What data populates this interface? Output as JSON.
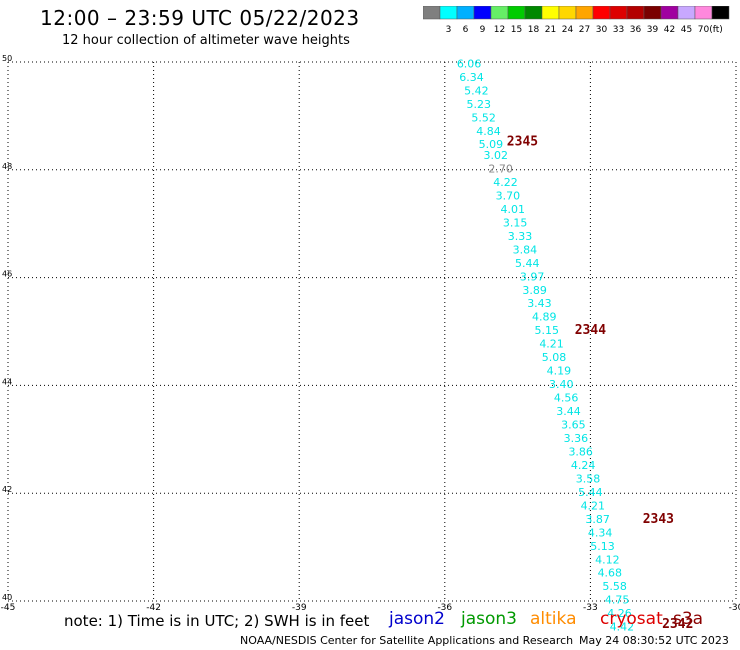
{
  "header": {
    "title": "12:00 – 23:59 UTC 05/22/2023",
    "subtitle": "12 hour collection of altimeter wave heights"
  },
  "colorbar": {
    "unit": "(ft)",
    "labels": [
      "3",
      "6",
      "9",
      "12",
      "15",
      "18",
      "21",
      "24",
      "27",
      "30",
      "33",
      "36",
      "39",
      "42",
      "45",
      "70"
    ],
    "colors": [
      "#7f7f7f",
      "#00ffff",
      "#00b0ff",
      "#0000ff",
      "#66ee66",
      "#00cc00",
      "#008800",
      "#ffff00",
      "#ffd700",
      "#ffa500",
      "#ff0000",
      "#dd0000",
      "#b30000",
      "#7a0000",
      "#a000a0",
      "#c8a8ff",
      "#ff88dd",
      "#000000"
    ]
  },
  "map": {
    "lon_range": [
      -45,
      -30
    ],
    "lat_range": [
      40,
      50
    ],
    "lon_ticks": [
      "-45",
      "-42",
      "-39",
      "-36",
      "-33",
      "-30"
    ],
    "lat_ticks": [
      "50",
      "48",
      "46",
      "44",
      "42",
      "40"
    ],
    "grid": "dotted"
  },
  "chart_data": {
    "type": "scatter",
    "x_unit": "degrees longitude",
    "y_unit": "degrees latitude",
    "xlim": [
      -45,
      -30
    ],
    "ylim": [
      40,
      50
    ],
    "points": [
      {
        "lon": -35.5,
        "lat": 49.9,
        "label": "6.06",
        "color": "#00e5e5"
      },
      {
        "lon": -35.45,
        "lat": 49.65,
        "label": "6.34",
        "color": "#00e5e5"
      },
      {
        "lon": -35.35,
        "lat": 49.4,
        "label": "5.42",
        "color": "#00e5e5"
      },
      {
        "lon": -35.3,
        "lat": 49.15,
        "label": "5.23",
        "color": "#00e5e5"
      },
      {
        "lon": -35.2,
        "lat": 48.9,
        "label": "5.52",
        "color": "#00e5e5"
      },
      {
        "lon": -35.1,
        "lat": 48.65,
        "label": "4.84",
        "color": "#00e5e5"
      },
      {
        "lon": -35.05,
        "lat": 48.4,
        "label": "5.09",
        "color": "#00e5e5"
      },
      {
        "lon": -34.95,
        "lat": 48.2,
        "label": "3.02",
        "color": "#00e5e5"
      },
      {
        "lon": -34.85,
        "lat": 47.95,
        "label": "2.70",
        "color": "#888888"
      },
      {
        "lon": -34.75,
        "lat": 47.7,
        "label": "4.22",
        "color": "#00e5e5"
      },
      {
        "lon": -34.7,
        "lat": 47.45,
        "label": "3.70",
        "color": "#00e5e5"
      },
      {
        "lon": -34.6,
        "lat": 47.2,
        "label": "4.01",
        "color": "#00e5e5"
      },
      {
        "lon": -34.55,
        "lat": 46.95,
        "label": "3.15",
        "color": "#00e5e5"
      },
      {
        "lon": -34.45,
        "lat": 46.7,
        "label": "3.33",
        "color": "#00e5e5"
      },
      {
        "lon": -34.35,
        "lat": 46.45,
        "label": "3.84",
        "color": "#00e5e5"
      },
      {
        "lon": -34.3,
        "lat": 46.2,
        "label": "5.44",
        "color": "#00e5e5"
      },
      {
        "lon": -34.2,
        "lat": 45.95,
        "label": "3.97",
        "color": "#00e5e5"
      },
      {
        "lon": -34.15,
        "lat": 45.7,
        "label": "3.89",
        "color": "#00e5e5"
      },
      {
        "lon": -34.05,
        "lat": 45.45,
        "label": "3.43",
        "color": "#00e5e5"
      },
      {
        "lon": -33.95,
        "lat": 45.2,
        "label": "4.89",
        "color": "#00e5e5"
      },
      {
        "lon": -33.9,
        "lat": 44.95,
        "label": "5.15",
        "color": "#00e5e5"
      },
      {
        "lon": -33.8,
        "lat": 44.7,
        "label": "4.21",
        "color": "#00e5e5"
      },
      {
        "lon": -33.75,
        "lat": 44.45,
        "label": "5.08",
        "color": "#00e5e5"
      },
      {
        "lon": -33.65,
        "lat": 44.2,
        "label": "4.19",
        "color": "#00e5e5"
      },
      {
        "lon": -33.6,
        "lat": 43.95,
        "label": "3.40",
        "color": "#00e5e5"
      },
      {
        "lon": -33.5,
        "lat": 43.7,
        "label": "4.56",
        "color": "#00e5e5"
      },
      {
        "lon": -33.45,
        "lat": 43.45,
        "label": "3.44",
        "color": "#00e5e5"
      },
      {
        "lon": -33.35,
        "lat": 43.2,
        "label": "3.65",
        "color": "#00e5e5"
      },
      {
        "lon": -33.3,
        "lat": 42.95,
        "label": "3.36",
        "color": "#00e5e5"
      },
      {
        "lon": -33.2,
        "lat": 42.7,
        "label": "3.86",
        "color": "#00e5e5"
      },
      {
        "lon": -33.15,
        "lat": 42.45,
        "label": "4.24",
        "color": "#00e5e5"
      },
      {
        "lon": -33.05,
        "lat": 42.2,
        "label": "3.58",
        "color": "#00e5e5"
      },
      {
        "lon": -33.0,
        "lat": 41.95,
        "label": "5.44",
        "color": "#00e5e5"
      },
      {
        "lon": -32.95,
        "lat": 41.7,
        "label": "4.21",
        "color": "#00e5e5"
      },
      {
        "lon": -32.85,
        "lat": 41.45,
        "label": "3.87",
        "color": "#00e5e5"
      },
      {
        "lon": -32.8,
        "lat": 41.2,
        "label": "4.34",
        "color": "#00e5e5"
      },
      {
        "lon": -32.75,
        "lat": 40.95,
        "label": "5.13",
        "color": "#00e5e5"
      },
      {
        "lon": -32.65,
        "lat": 40.7,
        "label": "4.12",
        "color": "#00e5e5"
      },
      {
        "lon": -32.6,
        "lat": 40.45,
        "label": "4.68",
        "color": "#00e5e5"
      },
      {
        "lon": -32.5,
        "lat": 40.2,
        "label": "5.58",
        "color": "#00e5e5"
      },
      {
        "lon": -32.45,
        "lat": 39.95,
        "label": "4.75",
        "color": "#00e5e5"
      },
      {
        "lon": -32.4,
        "lat": 39.7,
        "label": "4.26",
        "color": "#00e5e5"
      },
      {
        "lon": -32.35,
        "lat": 39.45,
        "label": "4.42",
        "color": "#00e5e5"
      }
    ],
    "time_labels": [
      {
        "lon": -34.4,
        "lat": 48.45,
        "label": "2345",
        "color": "#800000"
      },
      {
        "lon": -33.0,
        "lat": 44.95,
        "label": "2344",
        "color": "#800000"
      },
      {
        "lon": -31.6,
        "lat": 41.45,
        "label": "2343",
        "color": "#800000"
      },
      {
        "lon": -31.2,
        "lat": 39.5,
        "label": "2342",
        "color": "#800000"
      }
    ]
  },
  "footer": {
    "note": "note:  1) Time is in UTC;  2) SWH is in feet",
    "satellites": [
      {
        "name": "jason2",
        "color": "#0000cc"
      },
      {
        "name": "jason3",
        "color": "#009900"
      },
      {
        "name": "altika",
        "color": "#ff8c00"
      },
      {
        "name": "cryosat",
        "color": "#dd0000"
      },
      {
        "name": "s3a",
        "color": "#8b0000"
      }
    ],
    "credit": "NOAA/NESDIS Center for Satellite Applications and Research",
    "timestamp": "May 24 08:30:52 UTC 2023"
  }
}
